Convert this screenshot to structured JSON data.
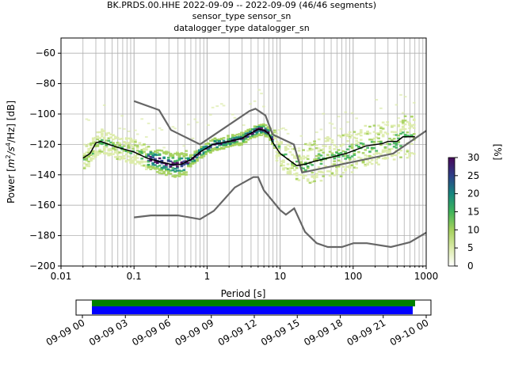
{
  "title_lines": [
    "BK.PRDS.00.HHE   2022-09-09 -- 2022-09-09  (46/46 segments)",
    "sensor_type  sensor_sn",
    "datalogger_type  datalogger_sn"
  ],
  "chart_data": {
    "type": "heatmap",
    "xlabel": "Period [s]",
    "ylabel_parts": {
      "prefix": "Power [",
      "unit_m": "m",
      "exp1": "2",
      "mid": "/s",
      "exp2": "4",
      "tail": "/Hz] [dB]"
    },
    "x_scale": "log",
    "xlim": [
      0.01,
      1000
    ],
    "ylim": [
      -200,
      -50
    ],
    "x_ticks": [
      {
        "value": 0.01,
        "label": "0.01"
      },
      {
        "value": 0.1,
        "label": "0.1"
      },
      {
        "value": 1,
        "label": "1"
      },
      {
        "value": 10,
        "label": "10"
      },
      {
        "value": 100,
        "label": "100"
      },
      {
        "value": 1000,
        "label": "1000"
      }
    ],
    "y_ticks": [
      {
        "value": -60,
        "label": "−60"
      },
      {
        "value": -80,
        "label": "−80"
      },
      {
        "value": -100,
        "label": "−100"
      },
      {
        "value": -120,
        "label": "−120"
      },
      {
        "value": -140,
        "label": "−140"
      },
      {
        "value": -160,
        "label": "−160"
      },
      {
        "value": -180,
        "label": "−180"
      },
      {
        "value": -200,
        "label": "−200"
      }
    ],
    "grid": true,
    "noise_model_high": [
      [
        0.1,
        -91.5
      ],
      [
        0.22,
        -97.4
      ],
      [
        0.32,
        -110.5
      ],
      [
        0.8,
        -120
      ],
      [
        3.8,
        -98
      ],
      [
        4.6,
        -96.5
      ],
      [
        6.3,
        -101
      ],
      [
        7.9,
        -113.5
      ],
      [
        15.4,
        -120
      ],
      [
        20,
        -138.5
      ],
      [
        354,
        -126
      ],
      [
        1000,
        -111
      ]
    ],
    "noise_model_low": [
      [
        0.1,
        -168
      ],
      [
        0.17,
        -166.7
      ],
      [
        0.4,
        -166.7
      ],
      [
        0.8,
        -169.2
      ],
      [
        1.24,
        -163.7
      ],
      [
        2.4,
        -148.3
      ],
      [
        4.3,
        -141.5
      ],
      [
        5,
        -141.5
      ],
      [
        6,
        -150.2
      ],
      [
        10,
        -163.2
      ],
      [
        12,
        -166.2
      ],
      [
        15.6,
        -162.1
      ],
      [
        21.9,
        -177.5
      ],
      [
        31.6,
        -185
      ],
      [
        45,
        -187.5
      ],
      [
        70,
        -187.5
      ],
      [
        101,
        -185
      ],
      [
        154,
        -185
      ],
      [
        328,
        -187.5
      ],
      [
        600,
        -184.4
      ],
      [
        1000,
        -178
      ]
    ],
    "mode_curve": [
      [
        0.02,
        -129
      ],
      [
        0.025,
        -126
      ],
      [
        0.03,
        -119
      ],
      [
        0.035,
        -118
      ],
      [
        0.045,
        -120
      ],
      [
        0.06,
        -122
      ],
      [
        0.1,
        -125
      ],
      [
        0.15,
        -129
      ],
      [
        0.25,
        -132
      ],
      [
        0.35,
        -133.5
      ],
      [
        0.45,
        -133
      ],
      [
        0.6,
        -130
      ],
      [
        0.8,
        -125
      ],
      [
        1.2,
        -120
      ],
      [
        2,
        -118
      ],
      [
        3,
        -116
      ],
      [
        4,
        -112.5
      ],
      [
        5,
        -110
      ],
      [
        6,
        -110.5
      ],
      [
        7,
        -113
      ],
      [
        8,
        -119
      ],
      [
        10,
        -126
      ],
      [
        13,
        -130
      ],
      [
        17,
        -134
      ],
      [
        22,
        -133
      ],
      [
        30,
        -131
      ],
      [
        50,
        -128.5
      ],
      [
        80,
        -126
      ],
      [
        110,
        -123.5
      ],
      [
        150,
        -121
      ],
      [
        250,
        -119.5
      ],
      [
        300,
        -118
      ],
      [
        400,
        -118
      ],
      [
        480,
        -115
      ],
      [
        700,
        -115
      ]
    ],
    "colorbar": {
      "label": "[%]",
      "min": 0,
      "max": 30,
      "ticks": [
        0,
        5,
        10,
        15,
        20,
        25,
        30
      ],
      "colors": [
        "#ffffff",
        "#dbeba9",
        "#a4d05c",
        "#3fb45a",
        "#17877f",
        "#2e3f88",
        "#48085a"
      ]
    }
  },
  "timeline": {
    "ticks": [
      "2022-09-09 00",
      "2022-09-09 03",
      "2022-09-09 06",
      "2022-09-09 09",
      "2022-09-09 12",
      "2022-09-09 15",
      "2022-09-09 18",
      "2022-09-09 21",
      "2022-09-10 00"
    ],
    "tick_labels": [
      "09-09 00",
      "09-09 03",
      "09-09 06",
      "09-09 09",
      "09-09 12",
      "09-09 15",
      "09-09 18",
      "09-09 21",
      "09-10 00"
    ],
    "green_bar_color": "#008000",
    "blue_bar_color": "#0000ff"
  }
}
